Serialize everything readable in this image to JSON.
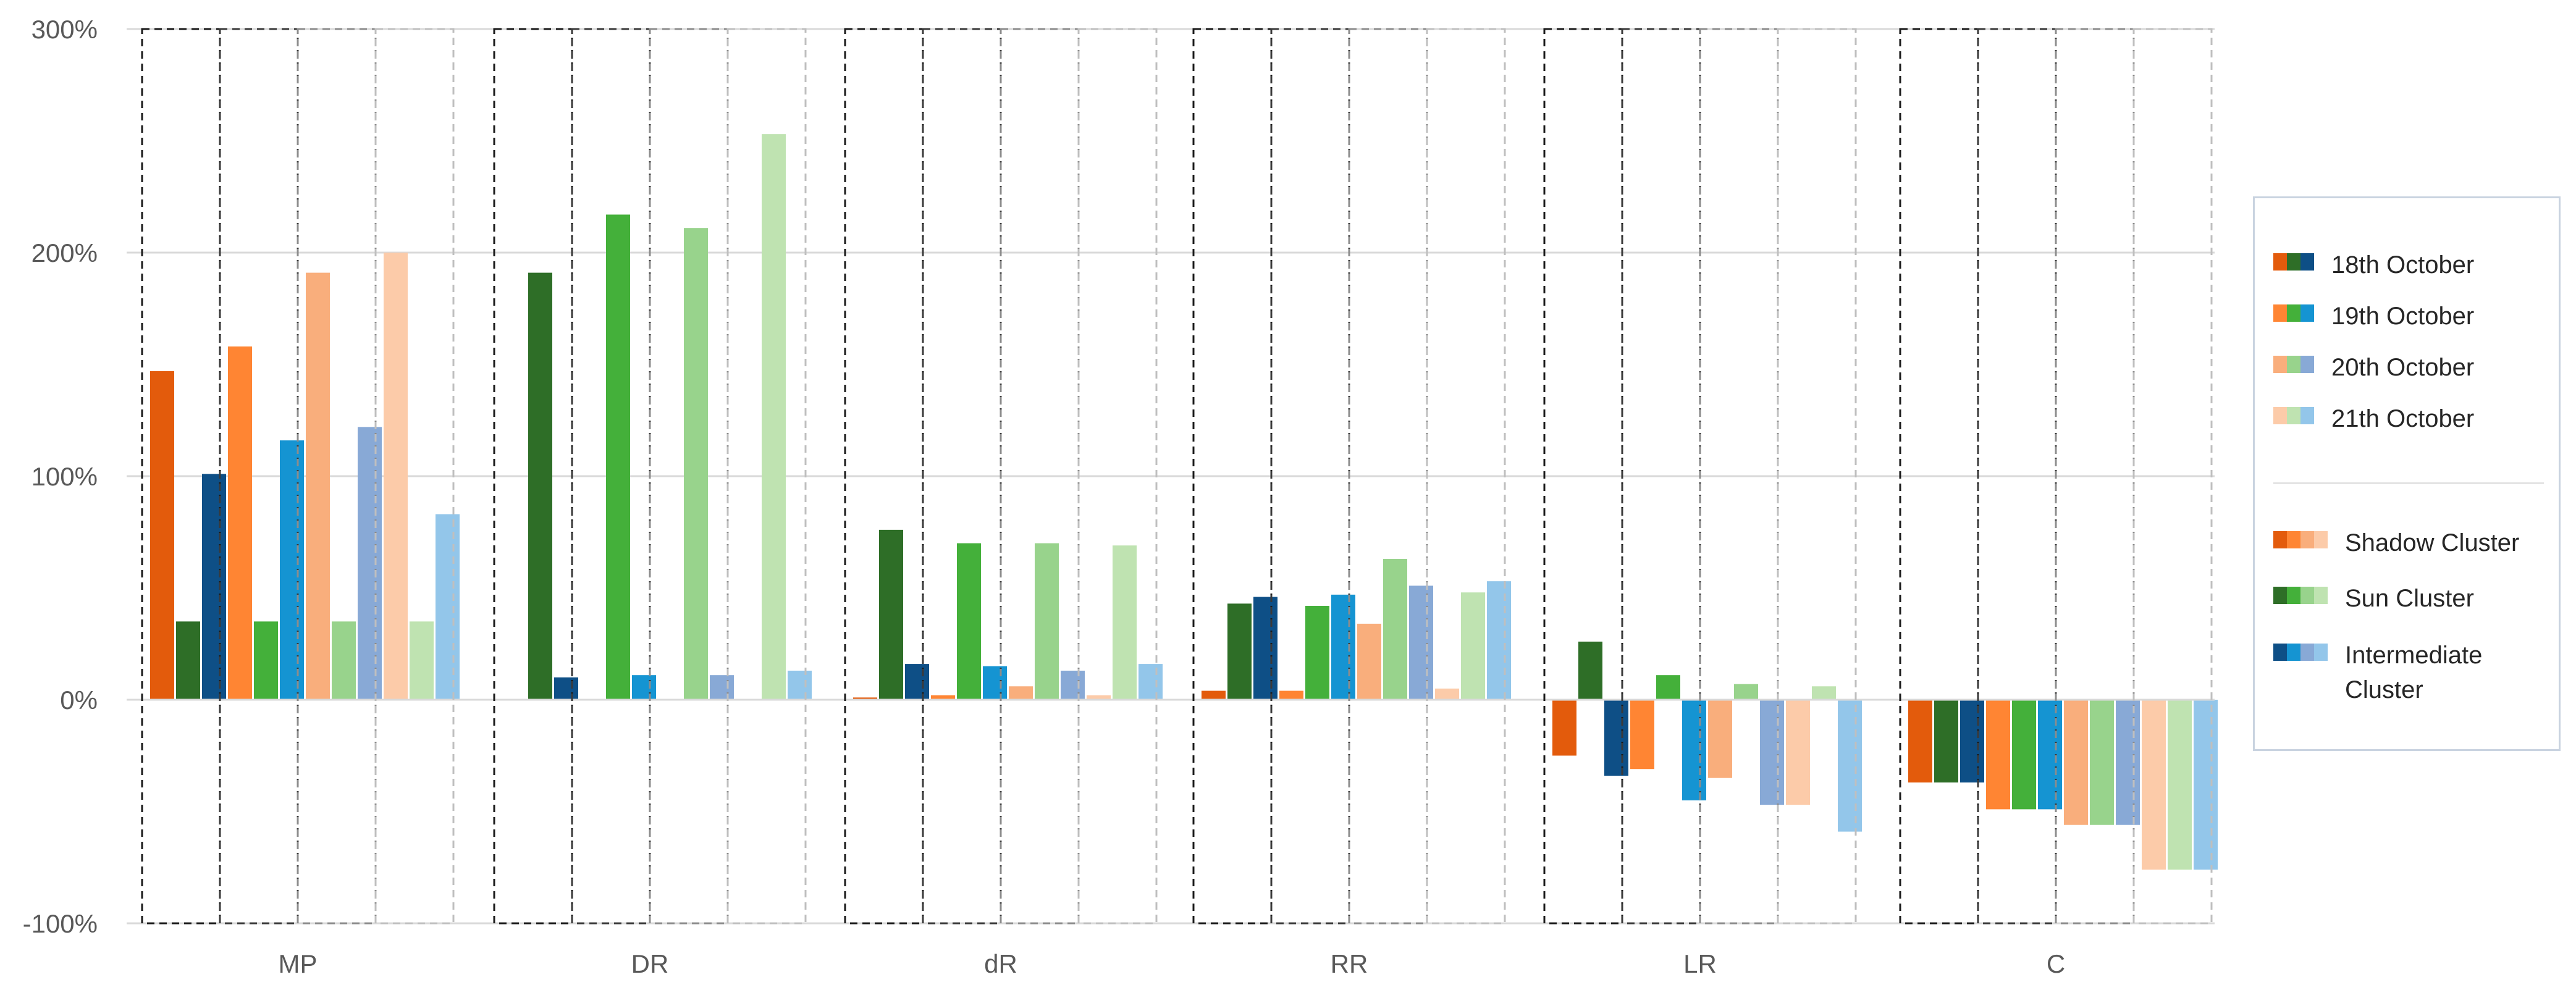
{
  "chart_data": {
    "type": "bar",
    "categories": [
      "MP",
      "DR",
      "dR",
      "RR",
      "LR",
      "C"
    ],
    "y_axis": {
      "ticks": [
        300,
        200,
        100,
        0,
        -100
      ],
      "tick_labels": [
        "300%",
        "200%",
        "100%",
        "0%",
        "-100%"
      ],
      "ylim": [
        -100,
        300
      ]
    },
    "grid": true,
    "legend_placement": "right",
    "dates": [
      "18th October",
      "19th October",
      "20th October",
      "21th October"
    ],
    "clusters": [
      "Shadow Cluster",
      "Sun Cluster",
      "Intermediate Cluster"
    ],
    "colors": {
      "Shadow Cluster": [
        "#e35b0c",
        "#ff8533",
        "#f9ae7c",
        "#fccba9"
      ],
      "Sun Cluster": [
        "#2e6e27",
        "#44b03a",
        "#98d38c",
        "#bfe3b1"
      ],
      "Intermediate Cluster": [
        "#0e4f86",
        "#1594d2",
        "#88a9d6",
        "#93c6ea"
      ]
    },
    "series": [
      {
        "date": "18th October",
        "cluster": "Shadow Cluster",
        "values": [
          147,
          0,
          1,
          4,
          -25,
          -37
        ]
      },
      {
        "date": "18th October",
        "cluster": "Sun Cluster",
        "values": [
          35,
          191,
          76,
          43,
          26,
          -37
        ]
      },
      {
        "date": "18th October",
        "cluster": "Intermediate Cluster",
        "values": [
          101,
          10,
          16,
          46,
          -34,
          -37
        ]
      },
      {
        "date": "19th October",
        "cluster": "Shadow Cluster",
        "values": [
          158,
          0,
          2,
          4,
          -31,
          -49
        ]
      },
      {
        "date": "19th October",
        "cluster": "Sun Cluster",
        "values": [
          35,
          217,
          70,
          42,
          11,
          -49
        ]
      },
      {
        "date": "19th October",
        "cluster": "Intermediate Cluster",
        "values": [
          116,
          11,
          15,
          47,
          -45,
          -49
        ]
      },
      {
        "date": "20th October",
        "cluster": "Shadow Cluster",
        "values": [
          191,
          0,
          6,
          34,
          -35,
          -56
        ]
      },
      {
        "date": "20th October",
        "cluster": "Sun Cluster",
        "values": [
          35,
          211,
          70,
          63,
          7,
          -56
        ]
      },
      {
        "date": "20th October",
        "cluster": "Intermediate Cluster",
        "values": [
          122,
          11,
          13,
          51,
          -47,
          -56
        ]
      },
      {
        "date": "21th October",
        "cluster": "Shadow Cluster",
        "values": [
          200,
          0,
          2,
          5,
          -47,
          -76
        ]
      },
      {
        "date": "21th October",
        "cluster": "Sun Cluster",
        "values": [
          35,
          253,
          69,
          48,
          6,
          -76
        ]
      },
      {
        "date": "21th October",
        "cluster": "Intermediate Cluster",
        "values": [
          83,
          13,
          16,
          53,
          -59,
          -76
        ]
      }
    ]
  },
  "legend": {
    "date_items": [
      {
        "label": "18th October",
        "swatches": [
          "#e35b0c",
          "#2e6e27",
          "#0e4f86"
        ]
      },
      {
        "label": "19th October",
        "swatches": [
          "#ff8533",
          "#44b03a",
          "#1594d2"
        ]
      },
      {
        "label": "20th October",
        "swatches": [
          "#f9ae7c",
          "#98d38c",
          "#88a9d6"
        ]
      },
      {
        "label": "21th October",
        "swatches": [
          "#fccba9",
          "#bfe3b1",
          "#93c6ea"
        ]
      }
    ],
    "cluster_items": [
      {
        "label": "Shadow Cluster",
        "swatches": [
          "#e35b0c",
          "#ff8533",
          "#f9ae7c",
          "#fccba9"
        ]
      },
      {
        "label": "Sun Cluster",
        "swatches": [
          "#2e6e27",
          "#44b03a",
          "#98d38c",
          "#bfe3b1"
        ]
      },
      {
        "label": "Intermediate Cluster",
        "swatches": [
          "#0e4f86",
          "#1594d2",
          "#88a9d6",
          "#93c6ea"
        ]
      }
    ]
  }
}
